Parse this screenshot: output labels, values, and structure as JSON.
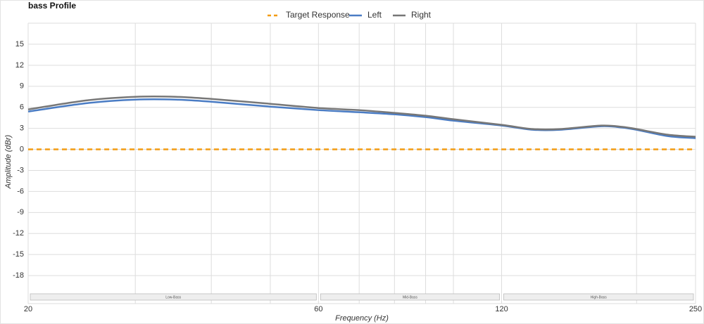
{
  "chart_data": {
    "type": "line",
    "title": "bass Profile",
    "x_label": "Frequency (Hz)",
    "y_label": "Amplitude (dBr)",
    "x_scale": "log",
    "x": [
      20,
      25,
      30,
      35,
      40,
      50,
      60,
      70,
      80,
      90,
      100,
      120,
      135,
      150,
      175,
      190,
      200,
      225,
      250
    ],
    "series": [
      {
        "name": "Target Response",
        "color": "#f39c12",
        "dashed": true,
        "values": [
          0,
          0,
          0,
          0,
          0,
          0,
          0,
          0,
          0,
          0,
          0,
          0,
          0,
          0,
          0,
          0,
          0,
          0,
          0
        ]
      },
      {
        "name": "Left",
        "color": "#4a7cc4",
        "dashed": false,
        "values": [
          5.4,
          6.6,
          7.1,
          7.1,
          6.8,
          6.1,
          5.6,
          5.3,
          5.0,
          4.6,
          4.1,
          3.4,
          2.8,
          2.8,
          3.3,
          3.1,
          2.8,
          1.9,
          1.6
        ]
      },
      {
        "name": "Right",
        "color": "#777777",
        "dashed": false,
        "values": [
          5.7,
          7.0,
          7.5,
          7.5,
          7.2,
          6.5,
          5.9,
          5.6,
          5.2,
          4.8,
          4.3,
          3.5,
          2.9,
          2.9,
          3.4,
          3.2,
          2.9,
          2.1,
          1.8
        ]
      }
    ],
    "xlim": [
      20,
      250
    ],
    "xticks": [
      20,
      60,
      120,
      250
    ],
    "xminor": [
      30,
      40,
      50,
      70,
      80,
      90,
      100,
      200
    ],
    "ylim": [
      -22,
      18
    ],
    "yticks": [
      -18,
      -15,
      -12,
      -9,
      -6,
      -3,
      0,
      3,
      6,
      9,
      12,
      15
    ],
    "grid": true,
    "legend": "top",
    "bands": [
      {
        "label": "Low-Bass",
        "from": 20,
        "to": 60
      },
      {
        "label": "Mid-Bass",
        "from": 60,
        "to": 120
      },
      {
        "label": "High-Bass",
        "from": 120,
        "to": 250
      }
    ]
  }
}
